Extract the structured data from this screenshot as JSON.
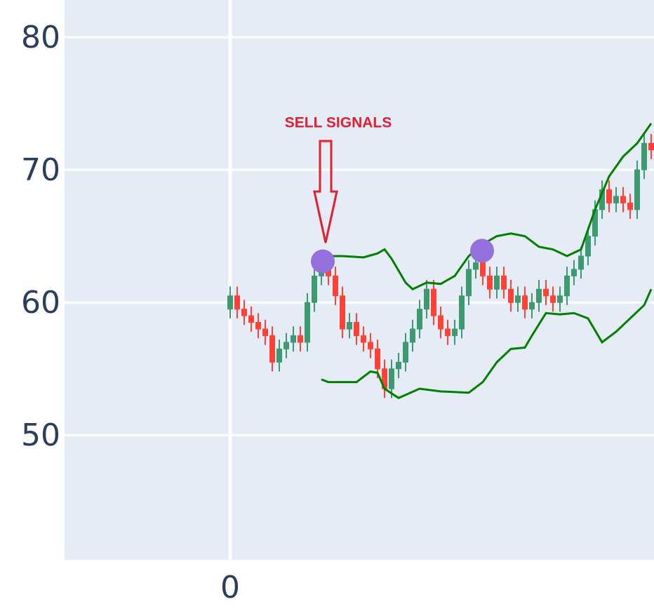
{
  "chart_data": {
    "type": "candlestick",
    "x": [
      0,
      1,
      2,
      3,
      4,
      5,
      6,
      7,
      8,
      9,
      10,
      11,
      12,
      13,
      14,
      15,
      16,
      17,
      18,
      19,
      20,
      21,
      22,
      23,
      24,
      25,
      26,
      27,
      28,
      29,
      30,
      31,
      32,
      33,
      34,
      35,
      36,
      37,
      38,
      39,
      40,
      41,
      42,
      43,
      44,
      45,
      46,
      47,
      48,
      49,
      50,
      51,
      52,
      53,
      54,
      55,
      56,
      57,
      58,
      59,
      60
    ],
    "open": [
      59.5,
      60.5,
      59.5,
      59,
      58.5,
      58,
      57.5,
      55.5,
      56.5,
      57,
      57.5,
      57,
      60,
      62,
      62.5,
      62,
      60.5,
      58,
      58.5,
      57.5,
      57,
      56.5,
      55,
      53.5,
      55,
      55.5,
      57,
      58,
      59.5,
      61,
      59,
      58,
      57.5,
      58,
      60.5,
      62.5,
      63,
      62,
      61,
      62,
      61,
      60,
      60.5,
      59.5,
      60,
      61,
      60.5,
      60,
      60.5,
      62,
      62.5,
      63.5,
      65,
      67,
      68.5,
      67.5,
      68,
      67.5,
      67,
      70,
      72
    ],
    "high": [
      61.2,
      61.2,
      60.2,
      59.7,
      59.2,
      58.7,
      58.2,
      57.2,
      57.7,
      58.2,
      58.2,
      60.7,
      62.7,
      63.2,
      63.2,
      62.7,
      61.2,
      59.2,
      59.2,
      58.2,
      57.7,
      57.2,
      55.7,
      55.7,
      56.2,
      57.7,
      58.7,
      60.2,
      61.7,
      61.7,
      59.7,
      58.7,
      58.7,
      61.2,
      63.2,
      63.7,
      63.7,
      62.7,
      62.7,
      62.7,
      61.7,
      61.2,
      61.2,
      60.7,
      61.7,
      61.7,
      61.2,
      61.2,
      62.7,
      63.2,
      64.2,
      65.7,
      67.7,
      69.2,
      69.2,
      68.7,
      68.7,
      68.2,
      70.7,
      72.7,
      72.7
    ],
    "low": [
      58.8,
      58.8,
      58.3,
      57.8,
      57.3,
      56.8,
      54.8,
      54.8,
      55.8,
      56.3,
      56.3,
      56.3,
      59.3,
      61.3,
      61.3,
      59.8,
      57.3,
      57.3,
      56.8,
      56.3,
      55.8,
      54.3,
      52.8,
      52.8,
      54.3,
      54.8,
      56.3,
      57.3,
      58.8,
      58.3,
      57.3,
      56.8,
      56.8,
      57.3,
      59.8,
      61.8,
      61.3,
      60.3,
      60.3,
      60.3,
      59.3,
      59.3,
      58.8,
      58.8,
      59.3,
      59.8,
      59.3,
      59.3,
      59.8,
      61.3,
      61.8,
      62.8,
      64.3,
      66.3,
      66.8,
      66.8,
      66.8,
      66.3,
      66.3,
      69.3,
      70.8
    ],
    "close": [
      60.5,
      59.5,
      59,
      58.5,
      58,
      57.5,
      55.5,
      56.5,
      57,
      57.5,
      57,
      60,
      62,
      62.5,
      62,
      60.5,
      58,
      58.5,
      57.5,
      57,
      56.5,
      55,
      53.5,
      55,
      55.5,
      57,
      58,
      59.5,
      61,
      59,
      58,
      57.5,
      58,
      60.5,
      62.5,
      63,
      62,
      61,
      62,
      61,
      60,
      60.5,
      59.5,
      60,
      61,
      60.5,
      60,
      60.5,
      62,
      62.5,
      63.5,
      65,
      67,
      68.5,
      67.5,
      68,
      67.5,
      67,
      70,
      72,
      71.5
    ],
    "increasing_color": "#3d9970",
    "decreasing_color": "#ff4136",
    "bands": [
      {
        "color": "#008000",
        "x": [
          13,
          14,
          16,
          19,
          21,
          22,
          23,
          25,
          26,
          28,
          30,
          32,
          34,
          36,
          38,
          40,
          42,
          44,
          46,
          48,
          50,
          52,
          54,
          56,
          58,
          60
        ],
        "values": [
          63.1,
          63.5,
          63.5,
          63.4,
          63.7,
          64,
          63.3,
          61.5,
          61,
          61.5,
          61.4,
          62,
          63.5,
          64.4,
          65,
          65.2,
          65,
          64.2,
          64,
          63.5,
          64,
          67,
          69.5,
          71,
          72,
          73.5
        ]
      },
      {
        "color": "#008000",
        "x": [
          13,
          14,
          16,
          18,
          20,
          21,
          22,
          24,
          27,
          30,
          34,
          36,
          38,
          40,
          42,
          43,
          45,
          47,
          49,
          51,
          53,
          55,
          57,
          59,
          60
        ],
        "values": [
          54.2,
          54,
          54,
          54,
          54.8,
          54.7,
          53.5,
          52.8,
          53.5,
          53.3,
          53.2,
          54,
          55.5,
          56.5,
          56.6,
          57.5,
          59.2,
          59.1,
          59.2,
          58.8,
          57,
          57.8,
          58.8,
          59.8,
          61
        ]
      }
    ],
    "signals": {
      "color": "#9370db",
      "x": [
        13.2,
        35.9
      ],
      "values": [
        63.1,
        63.9
      ]
    },
    "annotation": {
      "text": "SELL SIGNALS",
      "color": "#e0202f"
    },
    "xlim": [
      -23.6,
      60.4
    ],
    "ylim": [
      40.6,
      82.8
    ],
    "xticks": [
      0
    ],
    "yticks": [
      50,
      60,
      70,
      80
    ],
    "grid": true
  }
}
